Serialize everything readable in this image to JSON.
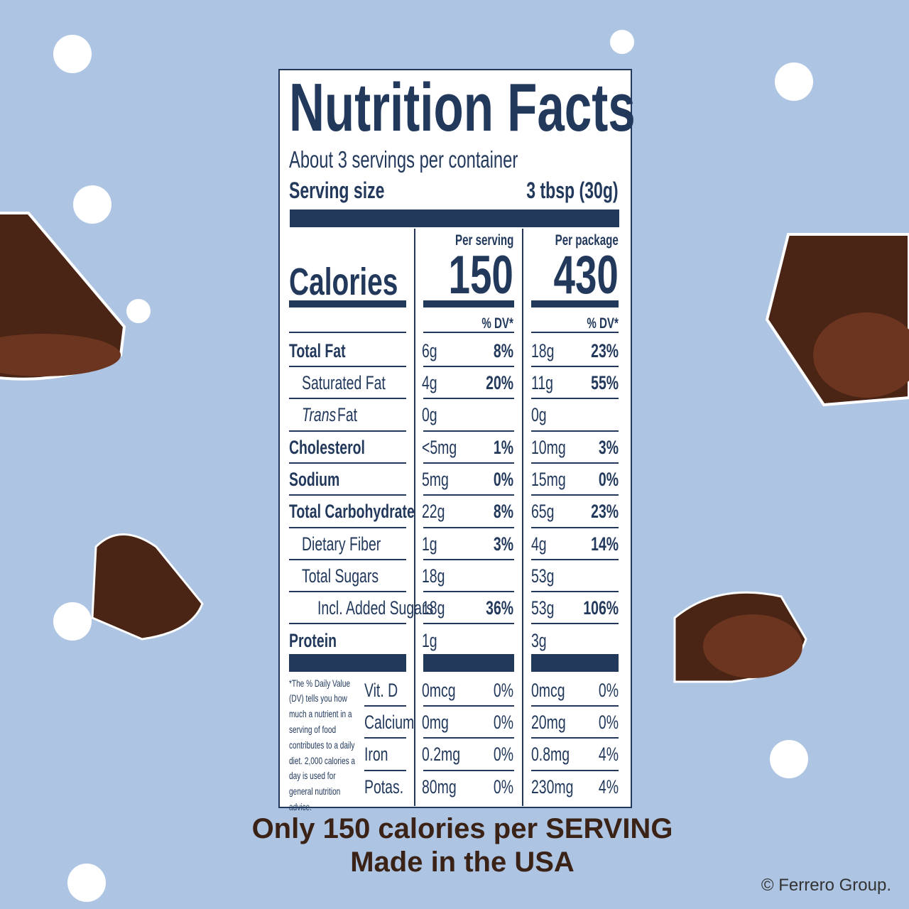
{
  "header": {
    "title": "Nutrition Facts",
    "servings": "About 3 servings per container",
    "serving_size_label": "Serving size",
    "serving_size": "3 tbsp (30g)"
  },
  "calories": {
    "label": "Calories",
    "per_serving_head": "Per serving",
    "per_package_head": "Per package",
    "per_serving": "150",
    "per_package": "430",
    "serving_dv_head": "% DV*",
    "package_dv_head": "% DV*"
  },
  "rows": [
    {
      "name": "Total Fat",
      "serving_amount": "6g",
      "serving_dv": "8%",
      "package_amount": "18g",
      "package_dv": "23%"
    },
    {
      "name": "Saturated Fat",
      "serving_amount": "4g",
      "serving_dv": "20%",
      "package_amount": "11g",
      "package_dv": "55%"
    },
    {
      "name_italic": "Trans",
      "name": "Fat",
      "serving_amount": "0g",
      "package_amount": "0g"
    },
    {
      "name": "Cholesterol",
      "serving_amount": "<5mg",
      "serving_dv": "1%",
      "package_amount": "10mg",
      "package_dv": "3%"
    },
    {
      "name": "Sodium",
      "serving_amount": "5mg",
      "serving_dv": "0%",
      "package_amount": "15mg",
      "package_dv": "0%"
    },
    {
      "name": "Total Carbohydrate",
      "serving_amount": "22g",
      "serving_dv": "8%",
      "package_amount": "65g",
      "package_dv": "23%"
    },
    {
      "name": "Dietary Fiber",
      "serving_amount": "1g",
      "serving_dv": "3%",
      "package_amount": "4g",
      "package_dv": "14%"
    },
    {
      "name": "Total Sugars",
      "serving_amount": "18g",
      "package_amount": "53g"
    },
    {
      "name": "Incl. Added Sugars",
      "serving_amount": "18g",
      "serving_dv": "36%",
      "package_amount": "53g",
      "package_dv": "106%"
    },
    {
      "name": "Protein",
      "serving_amount": "1g",
      "package_amount": "3g"
    }
  ],
  "footnote": "*The % Daily Value (DV) tells you how much a nutrient in a serving of food contributes to a daily diet. 2,000 calories a day is used for general nutrition advice.",
  "vitamins": [
    {
      "name": "Vit. D",
      "serving_amount": "0mcg",
      "serving_dv": "0%",
      "package_amount": "0mcg",
      "package_dv": "0%"
    },
    {
      "name": "Calcium",
      "serving_amount": "0mg",
      "serving_dv": "0%",
      "package_amount": "20mg",
      "package_dv": "0%"
    },
    {
      "name": "Iron",
      "serving_amount": "0.2mg",
      "serving_dv": "0%",
      "package_amount": "0.8mg",
      "package_dv": "4%"
    },
    {
      "name": "Potas.",
      "serving_amount": "80mg",
      "serving_dv": "0%",
      "package_amount": "230mg",
      "package_dv": "4%"
    }
  ],
  "tagline": [
    "Only 150 calories per SERVING",
    "Made in the USA"
  ],
  "copyright": "© Ferrero Group."
}
